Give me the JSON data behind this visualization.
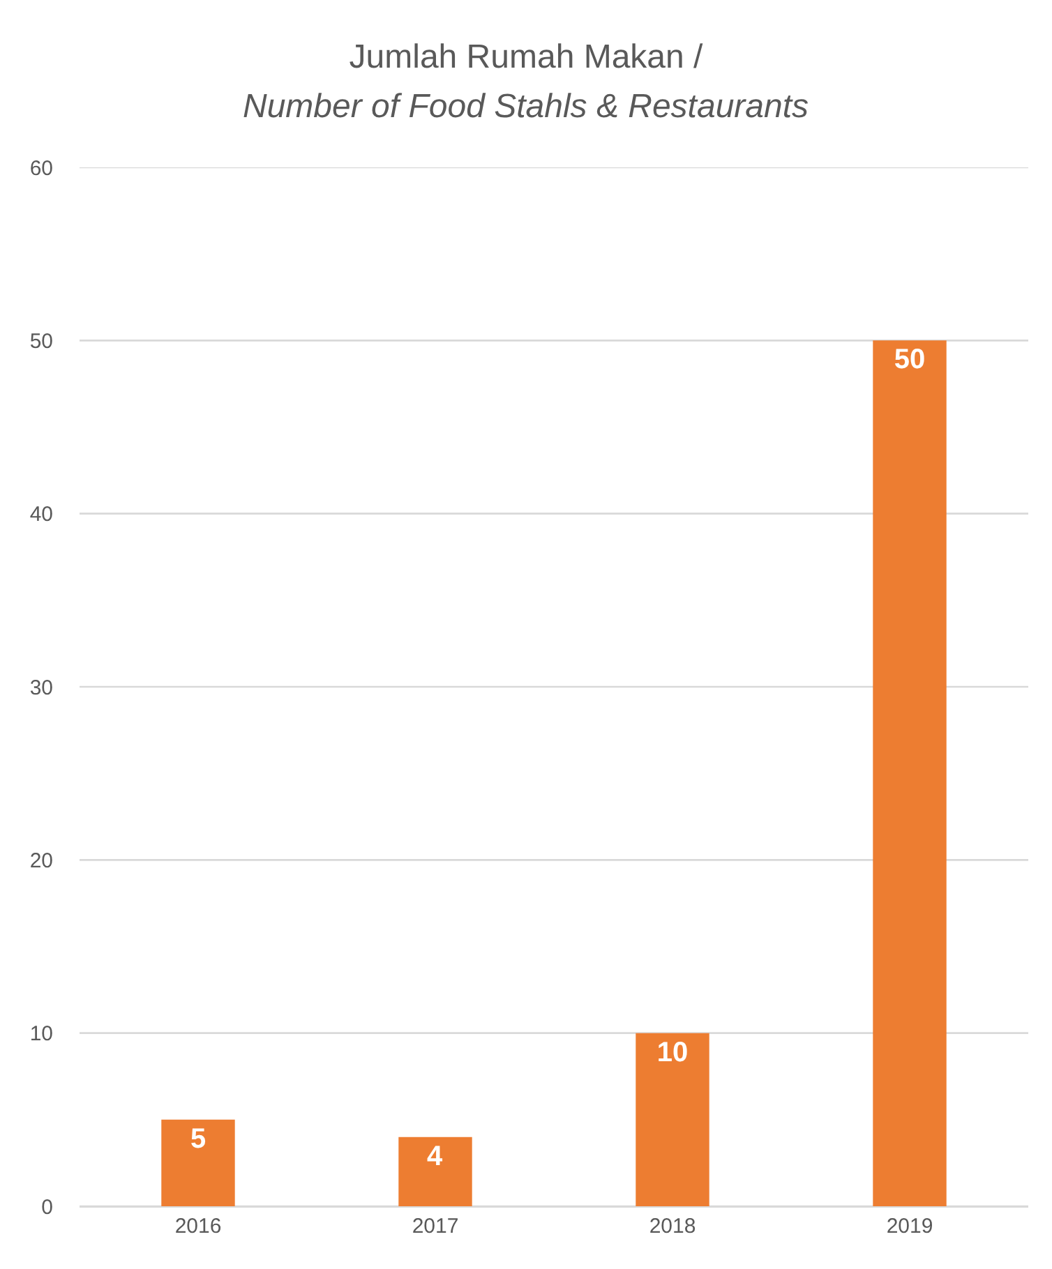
{
  "chart_data": {
    "type": "bar",
    "title": "Jumlah Rumah Makan /",
    "subtitle": "Number of Food Stahls & Restaurants",
    "categories": [
      "2016",
      "2017",
      "2018",
      "2019"
    ],
    "values": [
      5,
      4,
      10,
      50
    ],
    "color": "#ed7d31",
    "ylim": [
      0,
      60
    ],
    "yticks": [
      0,
      10,
      20,
      30,
      40,
      50,
      60
    ],
    "grid": "y",
    "data_labels": true
  }
}
